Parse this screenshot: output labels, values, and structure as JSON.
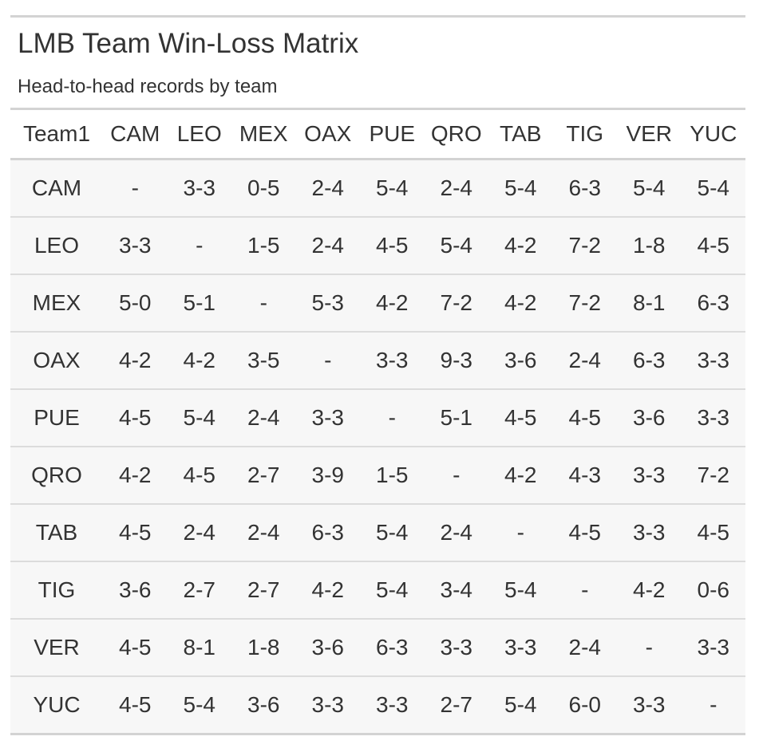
{
  "header": {
    "title": "LMB Team Win-Loss Matrix",
    "subtitle": "Head-to-head records by team"
  },
  "table": {
    "columns": [
      "Team1",
      "CAM",
      "LEO",
      "MEX",
      "OAX",
      "PUE",
      "QRO",
      "TAB",
      "TIG",
      "VER",
      "YUC"
    ],
    "rows": [
      [
        "CAM",
        "-",
        "3-3",
        "0-5",
        "2-4",
        "5-4",
        "2-4",
        "5-4",
        "6-3",
        "5-4",
        "5-4"
      ],
      [
        "LEO",
        "3-3",
        "-",
        "1-5",
        "2-4",
        "4-5",
        "5-4",
        "4-2",
        "7-2",
        "1-8",
        "4-5"
      ],
      [
        "MEX",
        "5-0",
        "5-1",
        "-",
        "5-3",
        "4-2",
        "7-2",
        "4-2",
        "7-2",
        "8-1",
        "6-3"
      ],
      [
        "OAX",
        "4-2",
        "4-2",
        "3-5",
        "-",
        "3-3",
        "9-3",
        "3-6",
        "2-4",
        "6-3",
        "3-3"
      ],
      [
        "PUE",
        "4-5",
        "5-4",
        "2-4",
        "3-3",
        "-",
        "5-1",
        "4-5",
        "4-5",
        "3-6",
        "3-3"
      ],
      [
        "QRO",
        "4-2",
        "4-5",
        "2-7",
        "3-9",
        "1-5",
        "-",
        "4-2",
        "4-3",
        "3-3",
        "7-2"
      ],
      [
        "TAB",
        "4-5",
        "2-4",
        "2-4",
        "6-3",
        "5-4",
        "2-4",
        "-",
        "4-5",
        "3-3",
        "4-5"
      ],
      [
        "TIG",
        "3-6",
        "2-7",
        "2-7",
        "4-2",
        "5-4",
        "3-4",
        "5-4",
        "-",
        "4-2",
        "0-6"
      ],
      [
        "VER",
        "4-5",
        "8-1",
        "1-8",
        "3-6",
        "6-3",
        "3-3",
        "3-3",
        "2-4",
        "-",
        "3-3"
      ],
      [
        "YUC",
        "4-5",
        "5-4",
        "3-6",
        "3-3",
        "3-3",
        "2-7",
        "5-4",
        "6-0",
        "3-3",
        "-"
      ]
    ]
  }
}
